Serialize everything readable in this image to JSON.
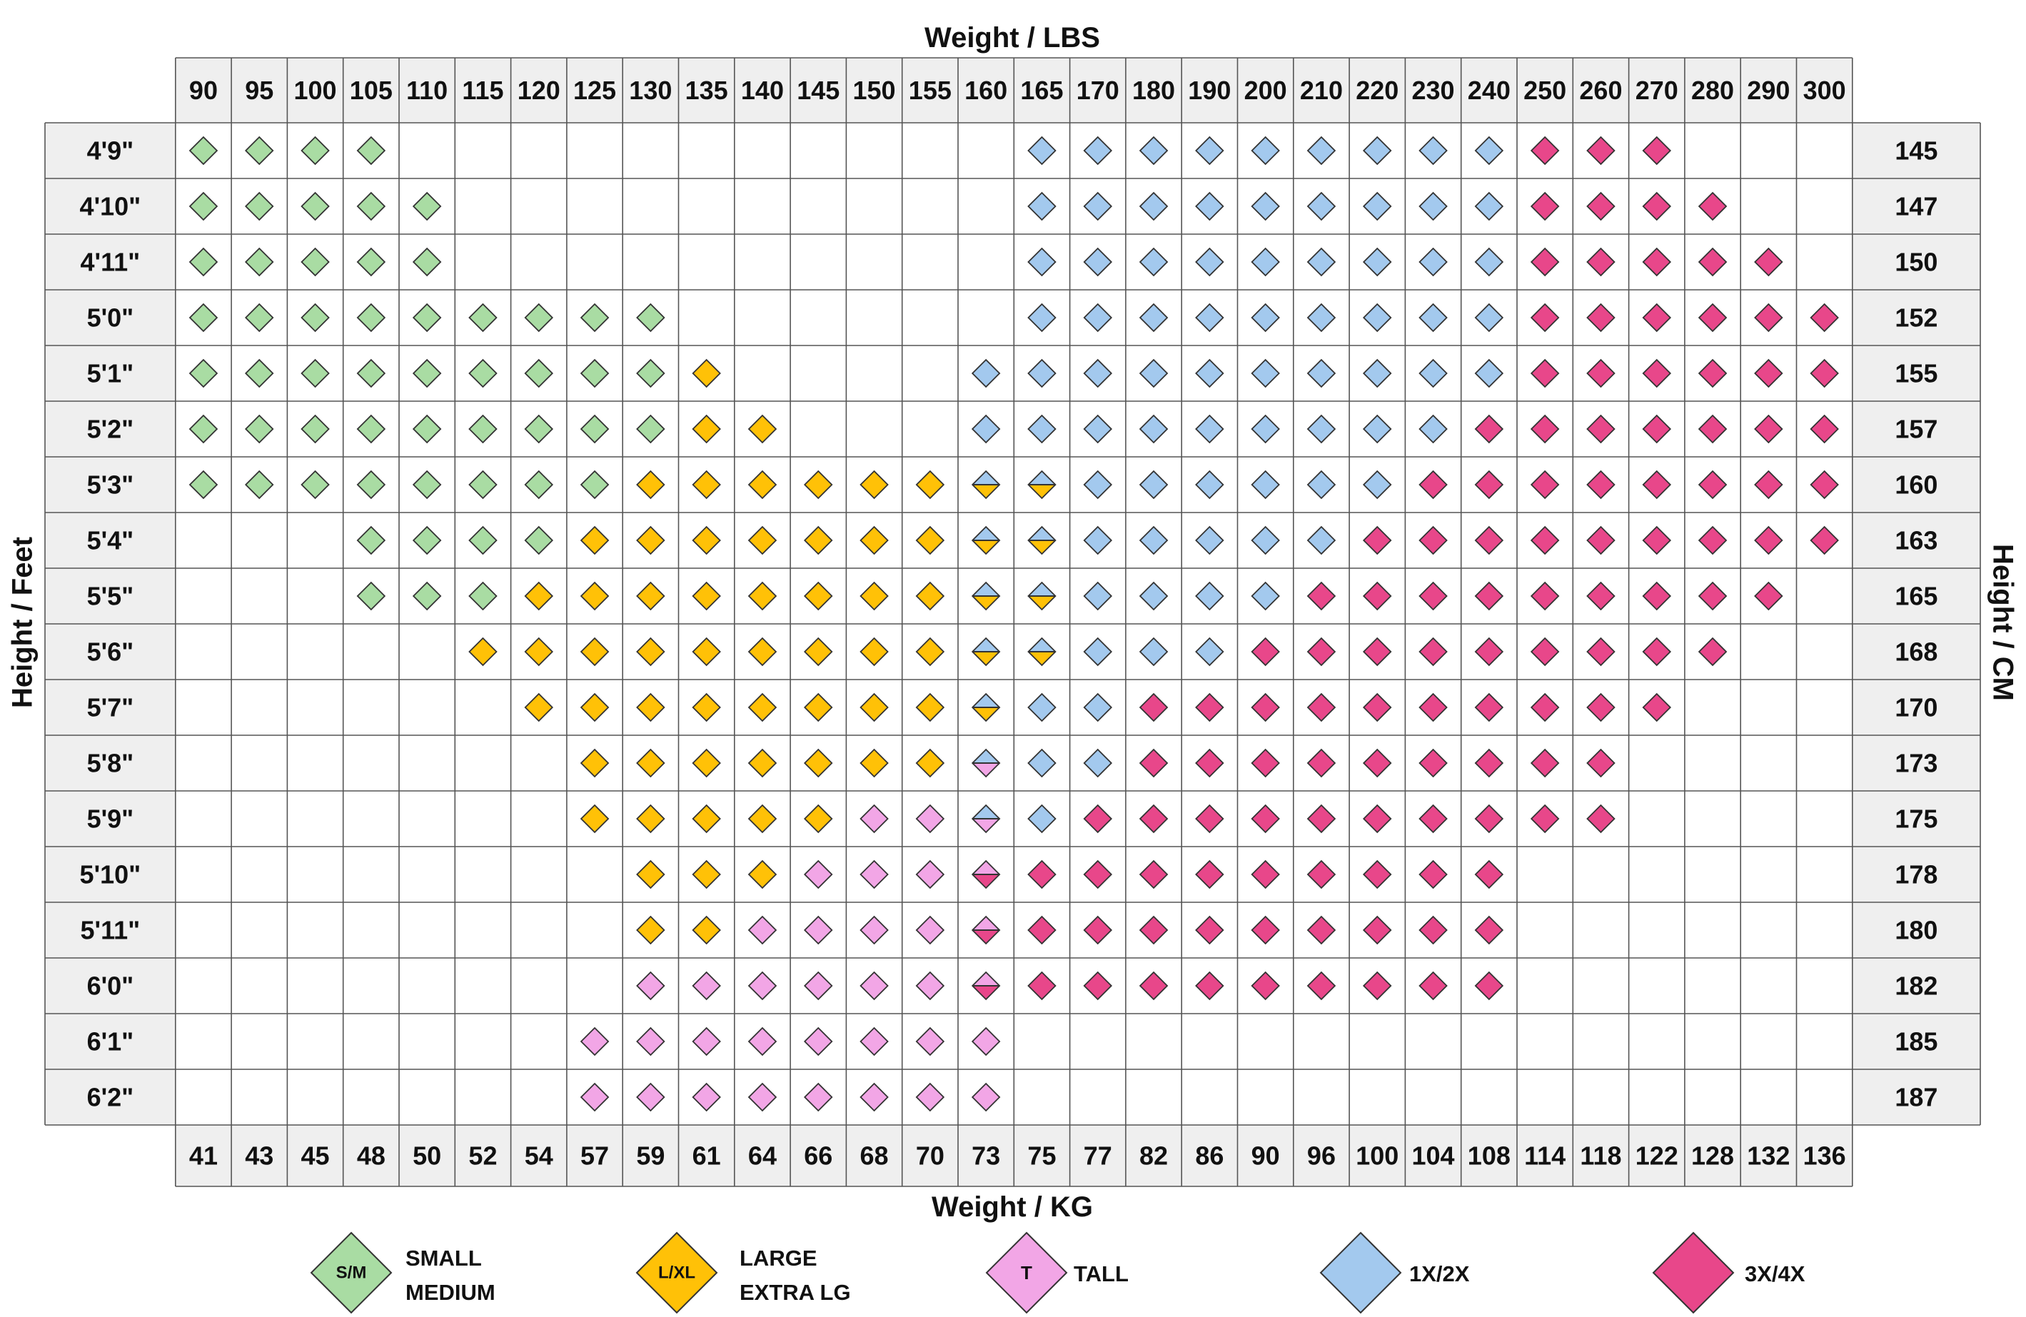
{
  "chart_data": {
    "type": "table",
    "top_axis_title": "Weight / LBS",
    "bottom_axis_title": "Weight / KG",
    "left_axis_title": "Height / Feet",
    "right_axis_title": "Height / CM",
    "weights_lbs": [
      "90",
      "95",
      "100",
      "105",
      "110",
      "115",
      "120",
      "125",
      "130",
      "135",
      "140",
      "145",
      "150",
      "155",
      "160",
      "165",
      "170",
      "180",
      "190",
      "200",
      "210",
      "220",
      "230",
      "240",
      "250",
      "260",
      "270",
      "280",
      "290",
      "300"
    ],
    "weights_kg": [
      "41",
      "43",
      "45",
      "48",
      "50",
      "52",
      "54",
      "57",
      "59",
      "61",
      "64",
      "66",
      "68",
      "70",
      "73",
      "75",
      "77",
      "82",
      "86",
      "90",
      "96",
      "100",
      "104",
      "108",
      "114",
      "118",
      "122",
      "128",
      "132",
      "136"
    ],
    "heights_ft": [
      "4'9\"",
      "4'10\"",
      "4'11\"",
      "5'0\"",
      "5'1\"",
      "5'2\"",
      "5'3\"",
      "5'4\"",
      "5'5\"",
      "5'6\"",
      "5'7\"",
      "5'8\"",
      "5'9\"",
      "5'10\"",
      "5'11\"",
      "6'0\"",
      "6'1\"",
      "6'2\""
    ],
    "heights_cm": [
      "145",
      "147",
      "150",
      "152",
      "155",
      "157",
      "160",
      "163",
      "165",
      "168",
      "170",
      "173",
      "175",
      "178",
      "180",
      "182",
      "185",
      "187"
    ],
    "cell_key": {
      "S": "S/M",
      "L": "L/XL",
      "T": "T",
      "B": "1X/2X",
      "P": "3X/4X",
      "Y": "L/XL + 1X/2X",
      "Q": "T + 1X/2X",
      "R": "T + 3X/4X",
      ".": "none"
    },
    "rows": [
      "SSSS...........BBBBBBBBBPPP...",
      "SSSSS..........BBBBBBBBBPPPP..",
      "SSSSS..........BBBBBBBBBPPPPP.",
      "SSSSSSSSS......BBBBBBBBBPPPPPP",
      "SSSSSSSSSL....BBBBBBBBBBPPPPPP",
      "SSSSSSSSSLL...BBBBBBBBBPPPPPPP",
      "SSSSSSSSLLLLLLYYBBBBBBPPPPPPPP",
      "...SSSSLLLLLLLYYBBBBBPPPPPPPPP",
      "...SSSLLLLLLLLYYBBBBPPPPPPPPP.",
      ".....LLLLLLLLLYYBBBPPPPPPPPP..",
      "......LLLLLLLLYBBPPPPPPPPPP...",
      ".......LLLLLLLQBBPPPPPPPPP....",
      ".......LLLLLTTQBPPPPPPPPPP....",
      "........LLLTTTRPPPPPPPPP......",
      "........LLTTTTRPPPPPPPPP......",
      "........TTTTTTRPPPPPPPPP......",
      ".......TTTTTTTT...............",
      ".......TTTTTTTT..............."
    ],
    "legend": [
      {
        "code": "S",
        "badge": "S/M",
        "label": "SMALL\nMEDIUM"
      },
      {
        "code": "L",
        "badge": "L/XL",
        "label": "LARGE\nEXTRA LG"
      },
      {
        "code": "T",
        "badge": "T",
        "label": "TALL"
      },
      {
        "code": "B",
        "badge": "",
        "label": "1X/2X"
      },
      {
        "code": "P",
        "badge": "",
        "label": "3X/4X"
      }
    ],
    "colors": {
      "S": "#a9dca3",
      "L": "#ffc107",
      "T": "#f2a6e6",
      "B": "#a3c9ee",
      "P": "#e8478a",
      "grid_line": "#555555",
      "header_fill": "#efefef",
      "cell_fill": "#ffffff",
      "outline": "#333333"
    }
  }
}
